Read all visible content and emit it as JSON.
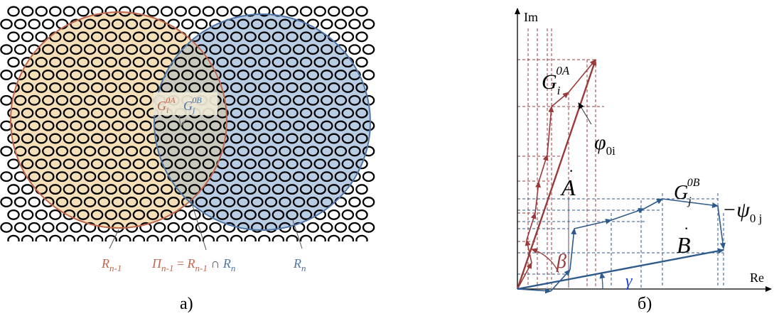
{
  "panel_a": {
    "caption": "а)",
    "gi_label": "G",
    "gi_sub": "i",
    "gi_sup": "0A",
    "gj_label": "G",
    "gj_sub": "j",
    "gj_sup": "0B",
    "r_left": "R",
    "r_left_sub": "n-1",
    "r_right": "R",
    "r_right_sub": "n",
    "pi_lhs": "Π",
    "pi_lhs_sub": "n-1",
    "pi_eq": " = ",
    "pi_r1": "R",
    "pi_r1_sub": "n-1",
    "pi_cap": " ∩ ",
    "pi_r2": "R",
    "pi_r2_sub": "n",
    "colors": {
      "left_fill": "#f5dfb8",
      "left_stroke": "#c0664c",
      "right_fill": "#b8cce4",
      "right_stroke": "#4f76a8",
      "overlap_fill": "#c9c8bd",
      "hole_stroke": "#000000"
    }
  },
  "panel_b": {
    "caption": "б)",
    "axis_im": "Im",
    "axis_re": "Re",
    "gi_label": "G",
    "gi_sub": "i",
    "gi_sup": "0A",
    "phi": "φ",
    "phi_sub": "0i",
    "a_label": "A",
    "b_label": "B",
    "gj_label": "G",
    "gj_sub": "j",
    "gj_sup": "0B",
    "psi": "−ψ",
    "psi_sub": "0 j",
    "beta": "β",
    "gamma": "γ",
    "colors": {
      "vector_a": "#9b3a3a",
      "vector_b": "#2e5a8c",
      "gamma": "#1f3fd6"
    }
  }
}
